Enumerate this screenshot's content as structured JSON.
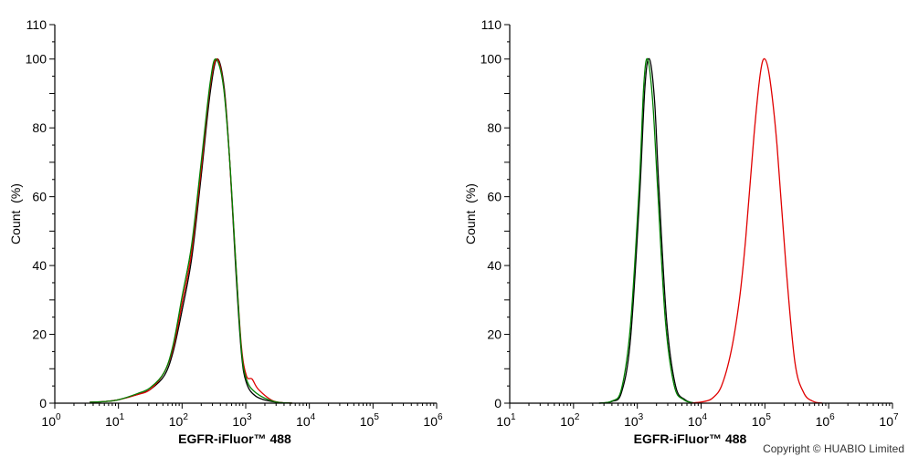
{
  "chart_data": [
    {
      "type": "line",
      "title": "",
      "xlabel": "EGFR-iFluor™ 488",
      "ylabel": "Count  (%)",
      "xscale": "log",
      "xlim_log10": [
        0,
        6
      ],
      "ylim": [
        0,
        110
      ],
      "xticks": [
        {
          "base": "10",
          "exp": "0"
        },
        {
          "base": "10",
          "exp": "1"
        },
        {
          "base": "10",
          "exp": "2"
        },
        {
          "base": "10",
          "exp": "3"
        },
        {
          "base": "10",
          "exp": "4"
        },
        {
          "base": "10",
          "exp": "5"
        },
        {
          "base": "10",
          "exp": "6"
        }
      ],
      "yticks": [
        "0",
        "20",
        "40",
        "60",
        "80",
        "100",
        "110"
      ],
      "series": [
        {
          "name": "black",
          "color": "#000000",
          "points_log10x_y": [
            [
              0.55,
              0.3
            ],
            [
              0.8,
              0.5
            ],
            [
              1.0,
              1
            ],
            [
              1.3,
              2.5
            ],
            [
              1.5,
              4
            ],
            [
              1.72,
              8
            ],
            [
              1.86,
              15
            ],
            [
              2.0,
              27
            ],
            [
              2.15,
              42
            ],
            [
              2.3,
              66
            ],
            [
              2.44,
              90
            ],
            [
              2.55,
              100
            ],
            [
              2.66,
              92
            ],
            [
              2.75,
              70
            ],
            [
              2.84,
              40
            ],
            [
              2.93,
              15
            ],
            [
              3.01,
              6
            ],
            [
              3.16,
              2
            ],
            [
              3.44,
              0.4
            ],
            [
              3.73,
              0
            ]
          ]
        },
        {
          "name": "red",
          "color": "#e00000",
          "points_log10x_y": [
            [
              0.55,
              0.3
            ],
            [
              0.8,
              0.5
            ],
            [
              1.0,
              1
            ],
            [
              1.3,
              2.5
            ],
            [
              1.5,
              4
            ],
            [
              1.72,
              9
            ],
            [
              1.86,
              16
            ],
            [
              2.0,
              29
            ],
            [
              2.15,
              44
            ],
            [
              2.3,
              68
            ],
            [
              2.44,
              92
            ],
            [
              2.55,
              100
            ],
            [
              2.66,
              91
            ],
            [
              2.75,
              70
            ],
            [
              2.84,
              42
            ],
            [
              2.93,
              17
            ],
            [
              3.01,
              8
            ],
            [
              3.1,
              7
            ],
            [
              3.2,
              4
            ],
            [
              3.44,
              0.6
            ],
            [
              3.73,
              0
            ]
          ]
        },
        {
          "name": "green",
          "color": "#008000",
          "points_log10x_y": [
            [
              0.55,
              0.3
            ],
            [
              0.8,
              0.5
            ],
            [
              1.0,
              1
            ],
            [
              1.3,
              2.8
            ],
            [
              1.5,
              4.5
            ],
            [
              1.72,
              9
            ],
            [
              1.86,
              17
            ],
            [
              2.0,
              31
            ],
            [
              2.15,
              46
            ],
            [
              2.3,
              70
            ],
            [
              2.44,
              93
            ],
            [
              2.53,
              100
            ],
            [
              2.65,
              92
            ],
            [
              2.75,
              70
            ],
            [
              2.84,
              42
            ],
            [
              2.93,
              16
            ],
            [
              3.01,
              7
            ],
            [
              3.16,
              3
            ],
            [
              3.44,
              0.5
            ],
            [
              3.73,
              0
            ]
          ]
        }
      ]
    },
    {
      "type": "line",
      "title": "",
      "xlabel": "EGFR-iFluor™ 488",
      "ylabel": "Count  (%)",
      "xscale": "log",
      "xlim_log10": [
        1,
        7
      ],
      "ylim": [
        0,
        110
      ],
      "xticks": [
        {
          "base": "10",
          "exp": "1"
        },
        {
          "base": "10",
          "exp": "2"
        },
        {
          "base": "10",
          "exp": "3"
        },
        {
          "base": "10",
          "exp": "4"
        },
        {
          "base": "10",
          "exp": "5"
        },
        {
          "base": "10",
          "exp": "6"
        },
        {
          "base": "10",
          "exp": "7"
        }
      ],
      "yticks": [
        "0",
        "20",
        "40",
        "60",
        "80",
        "100",
        "110"
      ],
      "series": [
        {
          "name": "black",
          "color": "#000000",
          "points_log10x_y": [
            [
              2.4,
              0
            ],
            [
              2.6,
              0.5
            ],
            [
              2.75,
              3
            ],
            [
              2.89,
              18
            ],
            [
              3.03,
              58
            ],
            [
              3.12,
              92
            ],
            [
              3.19,
              100
            ],
            [
              3.27,
              88
            ],
            [
              3.34,
              62
            ],
            [
              3.46,
              24
            ],
            [
              3.6,
              5
            ],
            [
              3.75,
              1
            ],
            [
              3.9,
              0
            ]
          ]
        },
        {
          "name": "green",
          "color": "#008000",
          "points_log10x_y": [
            [
              2.4,
              0
            ],
            [
              2.6,
              0.6
            ],
            [
              2.75,
              4
            ],
            [
              2.89,
              22
            ],
            [
              3.03,
              63
            ],
            [
              3.1,
              92
            ],
            [
              3.16,
              100
            ],
            [
              3.24,
              88
            ],
            [
              3.32,
              62
            ],
            [
              3.44,
              24
            ],
            [
              3.58,
              5
            ],
            [
              3.73,
              1
            ],
            [
              3.9,
              0
            ]
          ]
        },
        {
          "name": "red",
          "color": "#e00000",
          "points_log10x_y": [
            [
              3.85,
              0
            ],
            [
              4.05,
              0.5
            ],
            [
              4.18,
              1.5
            ],
            [
              4.32,
              5
            ],
            [
              4.47,
              15
            ],
            [
              4.6,
              30
            ],
            [
              4.7,
              48
            ],
            [
              4.83,
              78
            ],
            [
              4.93,
              96
            ],
            [
              5.0,
              100
            ],
            [
              5.08,
              94
            ],
            [
              5.19,
              75
            ],
            [
              5.33,
              40
            ],
            [
              5.47,
              12
            ],
            [
              5.61,
              3
            ],
            [
              5.76,
              0.5
            ],
            [
              5.9,
              0
            ]
          ]
        }
      ]
    }
  ],
  "copyright": "Copyright © HUABIO Limited"
}
